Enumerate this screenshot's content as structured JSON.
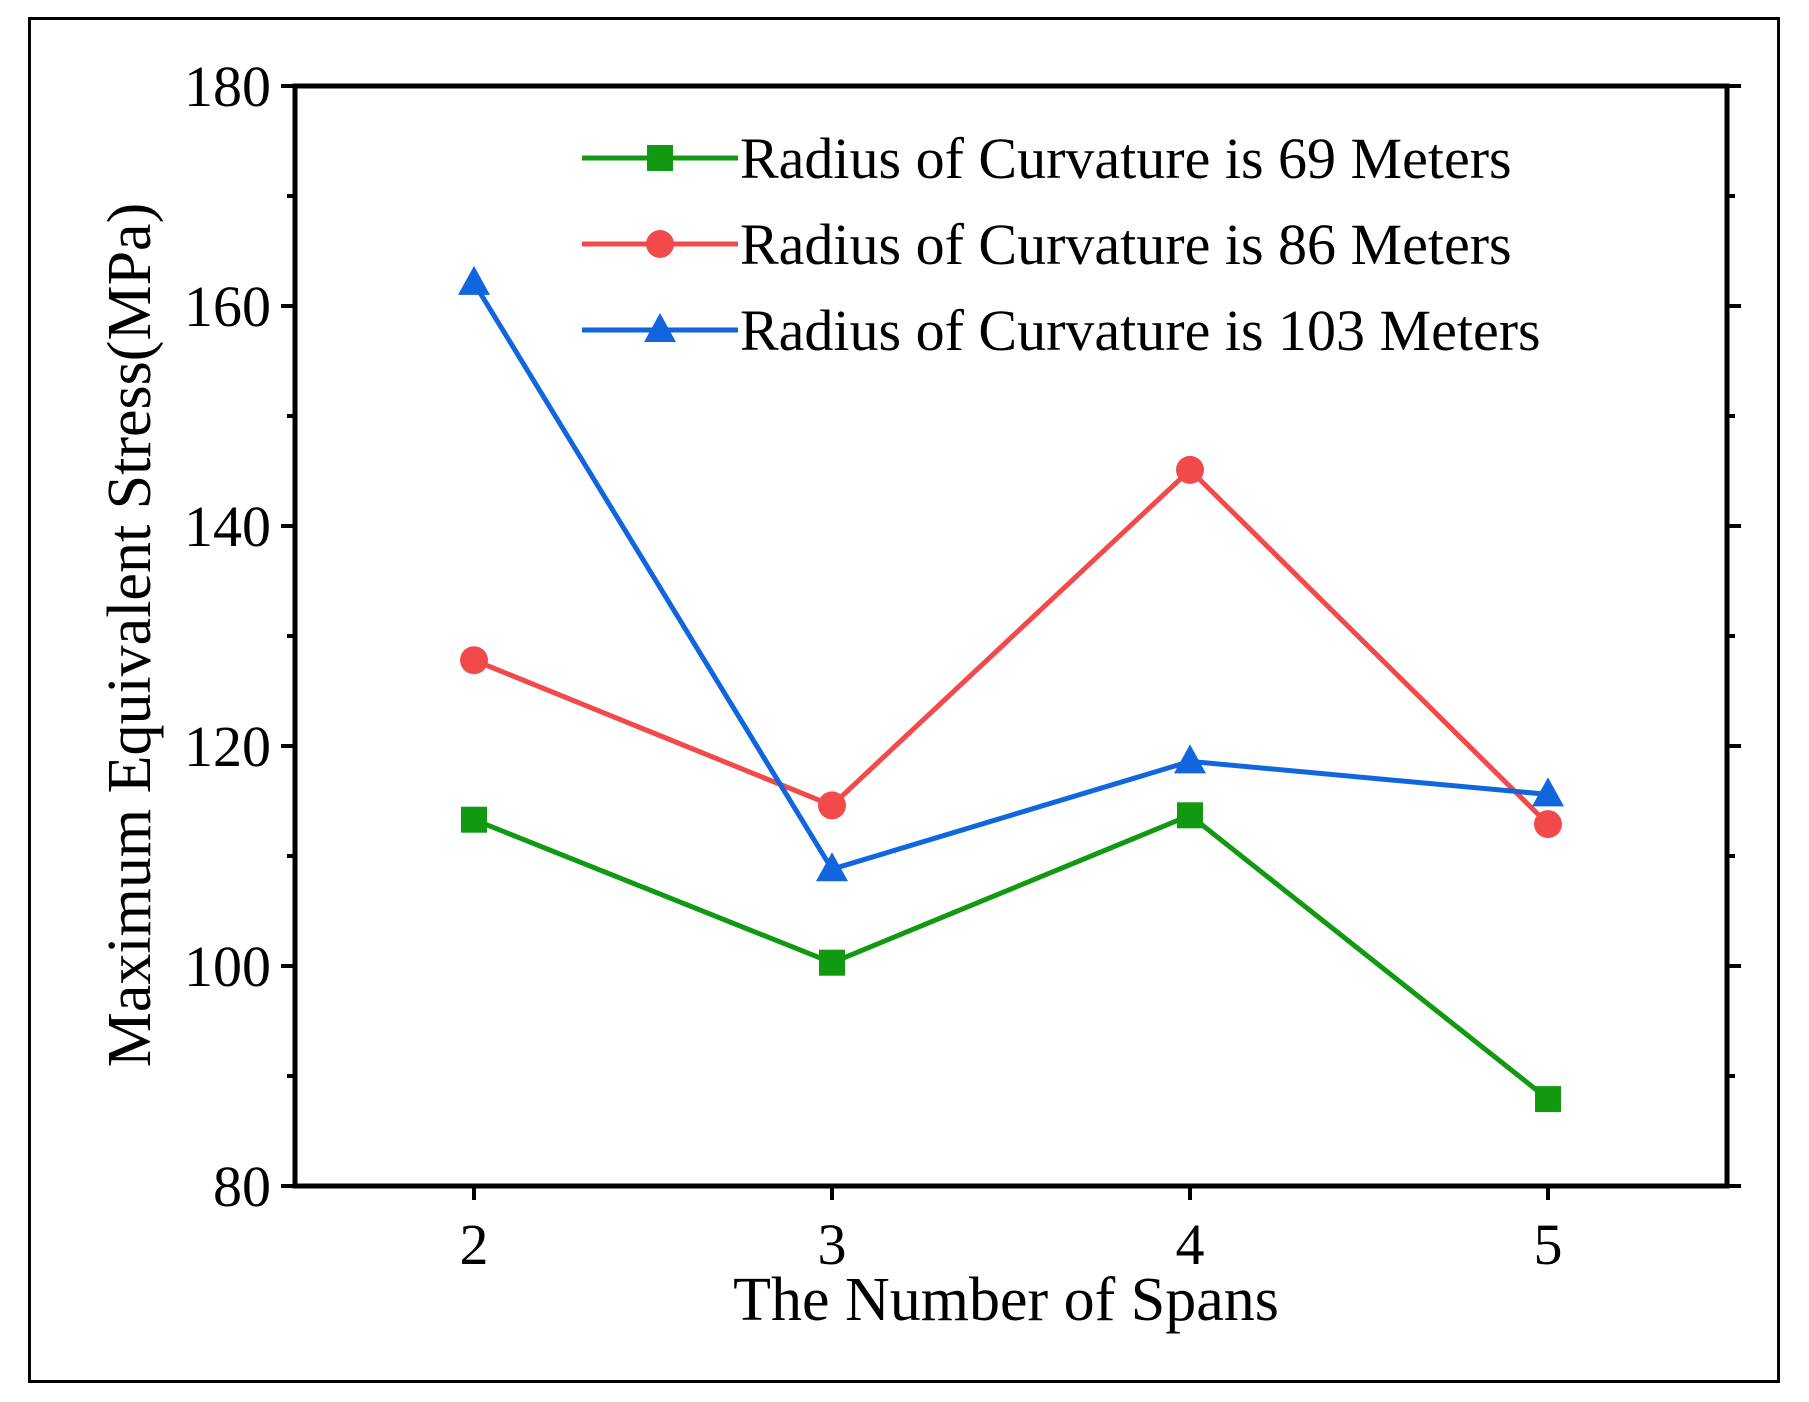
{
  "chart_data": {
    "type": "line",
    "title": "",
    "xlabel": "The Number of Spans",
    "ylabel": "Maximum Equivalent Stress(MPa)",
    "x": [
      2,
      3,
      4,
      5
    ],
    "x_tick_labels": [
      "2",
      "3",
      "4",
      "5"
    ],
    "xlim": [
      1.5,
      5.5
    ],
    "ylim": [
      80,
      180
    ],
    "y_ticks": [
      80,
      100,
      120,
      140,
      160,
      180
    ],
    "y_tick_labels": [
      "80",
      "100",
      "120",
      "140",
      "160",
      "180"
    ],
    "grid": false,
    "legend_position": "top-right",
    "series": [
      {
        "name": "Radius of Curvature is 69 Meters",
        "values": [
          113.3,
          100.3,
          113.7,
          87.9
        ],
        "color": "#119911",
        "marker": "square"
      },
      {
        "name": "Radius of Curvature is 86 Meters",
        "values": [
          127.8,
          114.6,
          145.1,
          112.9
        ],
        "color": "#f24a4a",
        "marker": "circle"
      },
      {
        "name": "Radius of Curvature is 103 Meters",
        "values": [
          162.1,
          108.8,
          118.6,
          115.6
        ],
        "color": "#1166dd",
        "marker": "triangle"
      }
    ]
  }
}
